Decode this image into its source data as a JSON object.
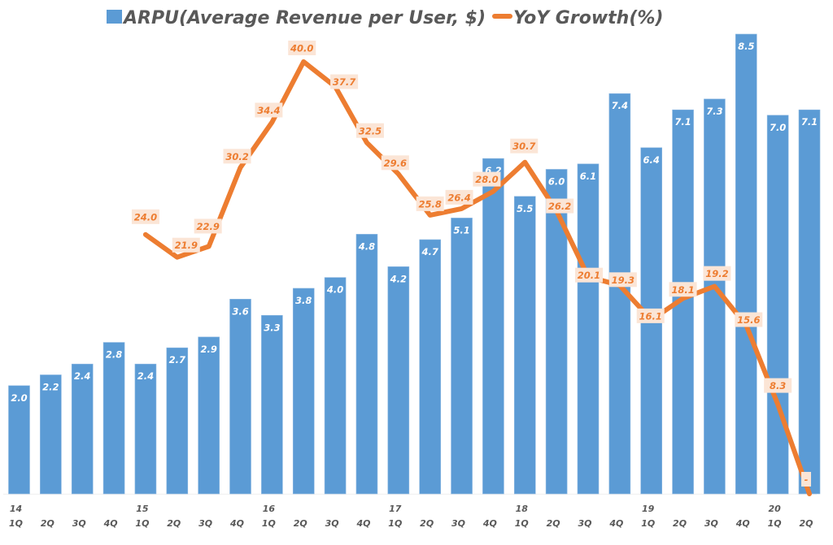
{
  "chart_data": {
    "type": "bar",
    "title": "",
    "xlabel": "",
    "ylabel": "",
    "legend_position": "top",
    "grid": false,
    "categories": [
      "1Q",
      "2Q",
      "3Q",
      "4Q",
      "1Q",
      "2Q",
      "3Q",
      "4Q",
      "1Q",
      "2Q",
      "3Q",
      "4Q",
      "1Q",
      "2Q",
      "3Q",
      "4Q",
      "1Q",
      "2Q",
      "3Q",
      "4Q",
      "1Q",
      "2Q",
      "3Q",
      "4Q",
      "1Q",
      "2Q"
    ],
    "year_labels": [
      "14",
      "",
      "",
      "",
      "15",
      "",
      "",
      "",
      "16",
      "",
      "",
      "",
      "17",
      "",
      "",
      "",
      "18",
      "",
      "",
      "",
      "19",
      "",
      "",
      "",
      "20",
      ""
    ],
    "series": [
      {
        "name": "ARPU(Average Revenue per User, $)",
        "type": "bar",
        "axis": "primary",
        "color": "#5b9bd5",
        "values": [
          2.0,
          2.2,
          2.4,
          2.8,
          2.4,
          2.7,
          2.9,
          3.6,
          3.3,
          3.8,
          4.0,
          4.8,
          4.2,
          4.7,
          5.1,
          6.2,
          5.5,
          6.0,
          6.1,
          7.4,
          6.4,
          7.1,
          7.3,
          8.5,
          7.0,
          7.1
        ],
        "labels": [
          "2.0",
          "2.2",
          "2.4",
          "2.8",
          "2.4",
          "2.7",
          "2.9",
          "3.6",
          "3.3",
          "3.8",
          "4.0",
          "4.8",
          "4.2",
          "4.7",
          "5.1",
          "6.2",
          "5.5",
          "6.0",
          "6.1",
          "7.4",
          "6.4",
          "7.1",
          "7.3",
          "8.5",
          "7.0",
          "7.1"
        ]
      },
      {
        "name": "YoY Growth(%)",
        "type": "line",
        "axis": "secondary",
        "color": "#ed7d31",
        "label_bg": "#fbe5d6",
        "values": [
          null,
          null,
          null,
          null,
          24.0,
          21.9,
          22.9,
          30.2,
          34.4,
          40.0,
          37.7,
          32.5,
          29.6,
          25.8,
          26.4,
          28.0,
          30.7,
          26.2,
          20.1,
          19.3,
          16.1,
          18.1,
          19.2,
          15.6,
          8.3,
          0
        ],
        "labels": [
          "",
          "",
          "",
          "",
          "24.0",
          "21.9",
          "22.9",
          "30.2",
          "34.4",
          "40.0",
          "37.7",
          "32.5",
          "29.6",
          "25.8",
          "26.4",
          "28.0",
          "30.7",
          "26.2",
          "20.1",
          "19.3",
          "16.1",
          "18.1",
          "19.2",
          "15.6",
          "8.3",
          "-"
        ]
      }
    ],
    "ylim": [
      0,
      9
    ],
    "y2lim": [
      0,
      45
    ]
  }
}
